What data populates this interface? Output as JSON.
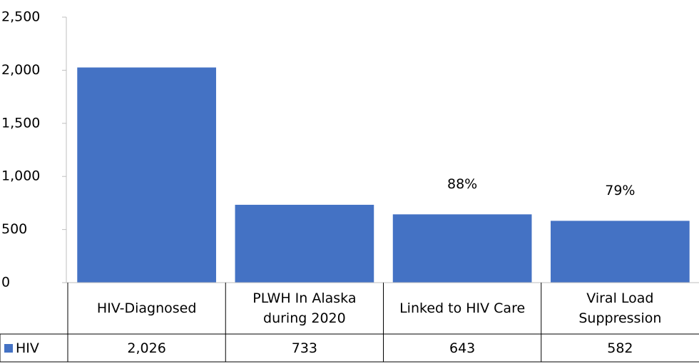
{
  "chart_data": {
    "type": "bar",
    "categories": [
      "HIV-Diagnosed",
      "PLWH In Alaska during 2020",
      "Linked to HIV Care",
      "Viral Load Suppression"
    ],
    "series": [
      {
        "name": "HIV",
        "color": "#4472c4",
        "values": [
          2026,
          733,
          643,
          582
        ],
        "value_labels": [
          "2,026",
          "733",
          "643",
          "582"
        ]
      }
    ],
    "bar_notes": [
      null,
      null,
      "88%",
      "79%"
    ],
    "ylim": [
      0,
      2500
    ],
    "yticks": [
      0,
      500,
      {
        "value": 1000,
        "label": "1,000"
      },
      {
        "value": 1500,
        "label": "1,500"
      },
      {
        "value": 2000,
        "label": "2,000"
      },
      {
        "value": 2500,
        "label": "2,500"
      }
    ],
    "grid": false
  }
}
